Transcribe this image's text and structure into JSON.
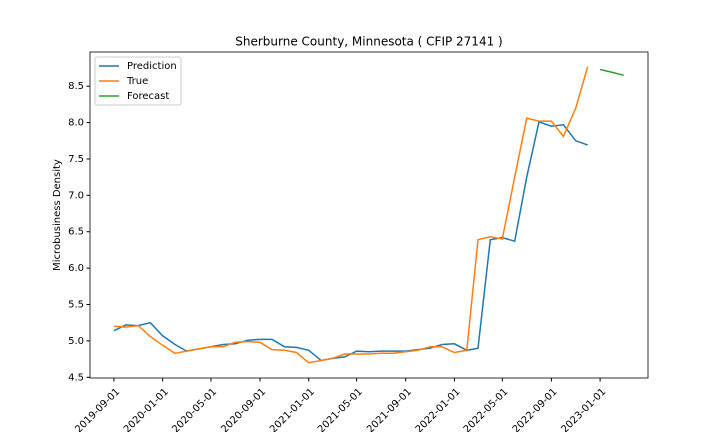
{
  "chart_data": {
    "type": "line",
    "title": "Sherburne County, Minnesota ( CFIP 27141 )",
    "y_label": "Microbusiness Density",
    "x": [
      "2019-09-01",
      "2019-10-01",
      "2019-11-01",
      "2019-12-01",
      "2020-01-01",
      "2020-02-01",
      "2020-03-01",
      "2020-04-01",
      "2020-05-01",
      "2020-06-01",
      "2020-07-01",
      "2020-08-01",
      "2020-09-01",
      "2020-10-01",
      "2020-11-01",
      "2020-12-01",
      "2021-01-01",
      "2021-02-01",
      "2021-03-01",
      "2021-04-01",
      "2021-05-01",
      "2021-06-01",
      "2021-07-01",
      "2021-08-01",
      "2021-09-01",
      "2021-10-01",
      "2021-11-01",
      "2021-12-01",
      "2022-01-01",
      "2022-02-01",
      "2022-03-01",
      "2022-04-01",
      "2022-05-01",
      "2022-06-01",
      "2022-07-01",
      "2022-08-01",
      "2022-09-01",
      "2022-10-01",
      "2022-11-01",
      "2022-12-01"
    ],
    "series": [
      {
        "name": "Prediction",
        "color": "#1f77b4",
        "values": [
          5.14,
          5.22,
          5.21,
          5.25,
          5.07,
          4.95,
          4.86,
          4.89,
          4.92,
          4.95,
          4.96,
          5.01,
          5.02,
          5.02,
          4.92,
          4.91,
          4.87,
          4.73,
          4.76,
          4.78,
          4.86,
          4.85,
          4.86,
          4.86,
          4.86,
          4.88,
          4.9,
          4.95,
          4.96,
          4.87,
          4.9,
          6.39,
          6.42,
          6.37,
          7.25,
          8.01,
          7.95,
          7.97,
          7.75,
          7.69
        ]
      },
      {
        "name": "True",
        "color": "#ff7f0e",
        "values": [
          5.2,
          5.19,
          5.21,
          5.06,
          4.94,
          4.83,
          4.86,
          4.89,
          4.92,
          4.92,
          4.98,
          4.99,
          4.98,
          4.88,
          4.87,
          4.84,
          4.7,
          4.73,
          4.76,
          4.82,
          4.82,
          4.82,
          4.83,
          4.83,
          4.85,
          4.87,
          4.92,
          4.92,
          4.84,
          4.87,
          6.39,
          6.43,
          6.4,
          7.25,
          8.06,
          8.02,
          8.02,
          7.81,
          8.2,
          8.77
        ]
      },
      {
        "name": "Forecast",
        "color": "#2ca02c",
        "x": [
          "2023-01-01",
          "2023-02-01",
          "2023-03-01"
        ],
        "values": [
          8.73,
          8.69,
          8.65
        ]
      }
    ],
    "xlim": [
      "2019-07-03",
      "2023-05-01"
    ],
    "xticks": [
      "2019-09-01",
      "2020-01-01",
      "2020-05-01",
      "2020-09-01",
      "2021-01-01",
      "2021-05-01",
      "2021-09-01",
      "2022-01-01",
      "2022-05-01",
      "2022-09-01",
      "2023-01-01"
    ],
    "ylim": [
      4.49,
      8.97
    ],
    "yticks": [
      4.5,
      {
        "value": 5,
        "label": "5.0"
      },
      5.5,
      {
        "value": 6,
        "label": "6.0"
      },
      6.5,
      {
        "value": 7,
        "label": "7.0"
      },
      7.5,
      {
        "value": 8,
        "label": "8.0"
      },
      8.5
    ],
    "legend": "upper left"
  }
}
